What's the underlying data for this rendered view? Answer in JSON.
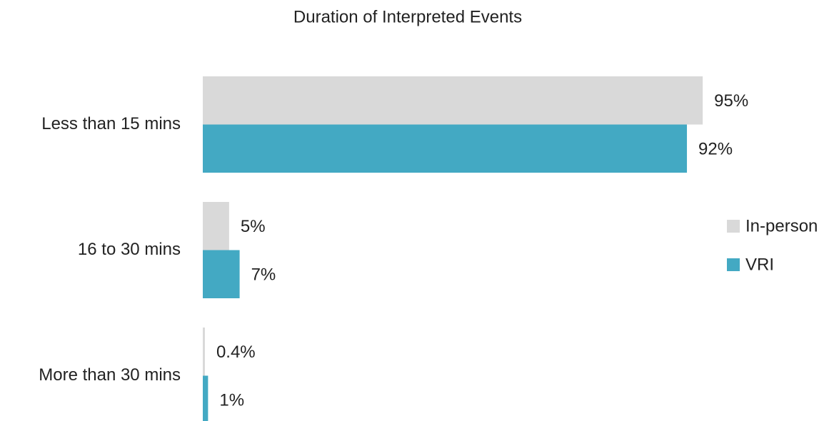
{
  "chart_data": {
    "type": "bar",
    "title": "Duration of Interpreted Events",
    "categories": [
      "Less than 15 mins",
      "16 to 30 mins",
      "More than 30 mins"
    ],
    "series": [
      {
        "name": "In-person",
        "color": "#d9d9d9",
        "values": [
          95,
          5,
          0.4
        ],
        "value_labels": [
          "95%",
          "5%",
          "0.4%"
        ]
      },
      {
        "name": "VRI",
        "color": "#43a9c3",
        "values": [
          92,
          7,
          1
        ],
        "value_labels": [
          "92%",
          "7%",
          "1%"
        ]
      }
    ]
  }
}
